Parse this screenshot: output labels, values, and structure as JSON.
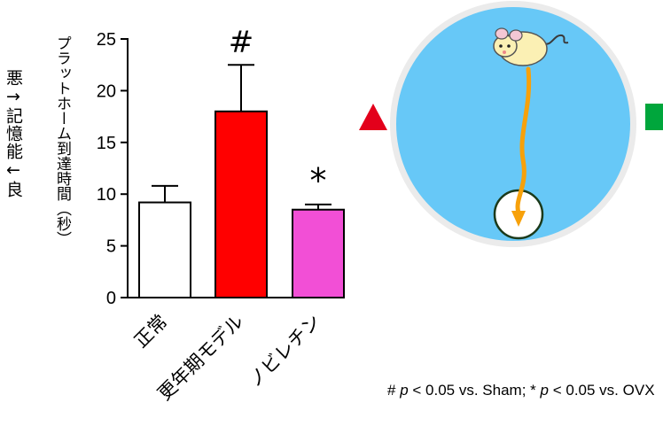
{
  "left_label": "悪→記憶能←良",
  "chart_data": {
    "type": "bar",
    "ylabel": "プラットホーム到達時間（秒）",
    "ylim": [
      0,
      25
    ],
    "yticks": [
      0,
      5,
      10,
      15,
      20,
      25
    ],
    "categories": [
      "正常",
      "更年期モデル",
      "ノビレチン"
    ],
    "values": [
      9.2,
      18.0,
      8.5
    ],
    "errors": [
      1.6,
      4.5,
      0.5
    ],
    "colors": [
      "#ffffff",
      "#ff0000",
      "#f24fd6"
    ],
    "annotations": [
      "",
      "#",
      "*"
    ]
  },
  "markers": {
    "triangle_color": "#e3001b",
    "square_color": "#00a63c"
  },
  "pool_colors": {
    "water": "#67c8f7",
    "rim": "#ebebeb",
    "path": "#f7a10a"
  },
  "footnote": {
    "hash": "#",
    "p1": "p",
    "t1": " < 0.05 vs. Sham; ",
    "star": "*",
    "p2": "p",
    "t2": " < 0.05 vs. OVX"
  }
}
